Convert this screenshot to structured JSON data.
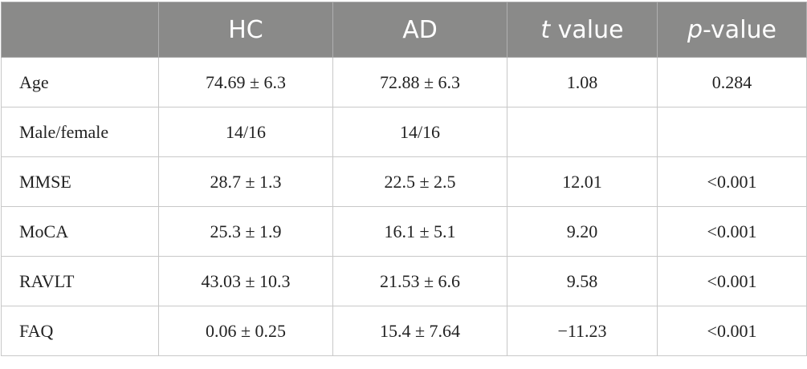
{
  "table": {
    "header": [
      "HC",
      "AD",
      {
        "italic": "t",
        "text": "value"
      },
      {
        "italic": "p",
        "text": "-value"
      }
    ],
    "rows": [
      [
        "Age",
        "74.69 ± 6.3",
        "72.88 ± 6.3",
        "1.08",
        "0.284"
      ],
      [
        "Male/female",
        "14/16",
        "14/16",
        null,
        null
      ],
      [
        "MMSE",
        "28.7 ± 1.3",
        "22.5 ± 2.5",
        "12.01",
        "<0.001"
      ],
      [
        "MoCA",
        "25.3 ± 1.9",
        "16.1 ± 5.1",
        "9.20",
        "<0.001"
      ],
      [
        "RAVLT",
        "43.03 ± 10.3",
        "21.53 ± 6.6",
        "9.58",
        "<0.001"
      ],
      [
        "FAQ",
        "0.06 ± 0.25",
        "15.4 ± 7.64",
        "−11.23",
        "<0.001"
      ]
    ]
  }
}
